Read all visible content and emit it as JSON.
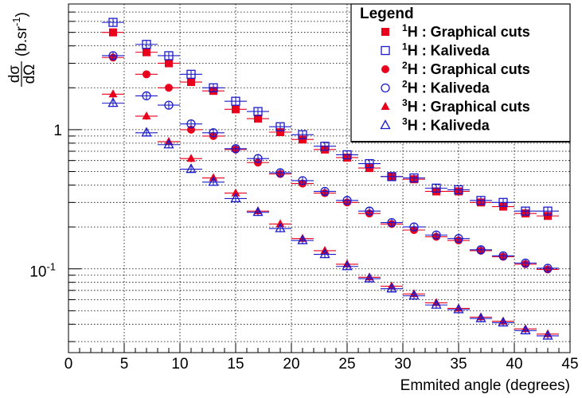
{
  "chart_data": {
    "type": "scatter",
    "title": "",
    "xlabel": "Emmited angle (degrees)",
    "ylabel_main": "dσ",
    "ylabel_denominator": "dΩ",
    "ylabel_unit": "(b.sr",
    "ylabel_exp": "-1",
    "ylabel_close": ")",
    "xlim": [
      0,
      45
    ],
    "ylim": [
      0.025,
      8
    ],
    "yscale": "log",
    "grid": true,
    "x_ticks": [
      "0",
      "5",
      "10",
      "15",
      "20",
      "25",
      "30",
      "35",
      "40",
      "45"
    ],
    "y_tick_one": "1",
    "y_tick_tenth_base": "10",
    "y_tick_tenth_exp": "-1",
    "legend": {
      "title": "Legend",
      "placement": "top-right"
    },
    "x": [
      4,
      7,
      9,
      11,
      13,
      15,
      17,
      19,
      21,
      23,
      25,
      27,
      29,
      31,
      33,
      35,
      37,
      39,
      41,
      43
    ],
    "x_error": 1,
    "series": [
      {
        "isotope": "1",
        "label": "H : Graphical cuts",
        "marker": "square-filled",
        "color": "#e8001c",
        "values": [
          5.0,
          3.6,
          3.0,
          2.2,
          1.9,
          1.4,
          1.2,
          0.96,
          0.85,
          0.72,
          0.63,
          0.53,
          0.46,
          0.44,
          0.36,
          0.36,
          0.3,
          0.28,
          0.25,
          0.24
        ]
      },
      {
        "isotope": "1",
        "label": "H : Kaliveda",
        "marker": "square-open",
        "color": "#1a1acc",
        "values": [
          5.9,
          4.1,
          3.4,
          2.5,
          2.0,
          1.6,
          1.35,
          1.05,
          0.92,
          0.76,
          0.66,
          0.57,
          0.46,
          0.45,
          0.38,
          0.37,
          0.31,
          0.3,
          0.26,
          0.26
        ]
      },
      {
        "isotope": "2",
        "label": "H : Graphical cuts",
        "marker": "circle-filled",
        "color": "#e8001c",
        "values": [
          3.3,
          2.5,
          2.0,
          1.0,
          0.9,
          0.72,
          0.58,
          0.48,
          0.41,
          0.35,
          0.3,
          0.25,
          0.21,
          0.19,
          0.17,
          0.16,
          0.135,
          0.122,
          0.108,
          0.099
        ]
      },
      {
        "isotope": "2",
        "label": "H : Kaliveda",
        "marker": "circle-open",
        "color": "#1a1acc",
        "values": [
          3.4,
          1.75,
          1.5,
          1.1,
          0.95,
          0.73,
          0.62,
          0.49,
          0.43,
          0.36,
          0.31,
          0.26,
          0.215,
          0.2,
          0.175,
          0.165,
          0.137,
          0.124,
          0.11,
          0.101
        ]
      },
      {
        "isotope": "3",
        "label": "H : Graphical cuts",
        "marker": "triangle-filled",
        "color": "#e8001c",
        "values": [
          1.8,
          1.25,
          0.82,
          0.62,
          0.45,
          0.35,
          0.26,
          0.21,
          0.165,
          0.135,
          0.108,
          0.087,
          0.075,
          0.066,
          0.057,
          0.052,
          0.045,
          0.042,
          0.037,
          0.034
        ]
      },
      {
        "isotope": "3",
        "label": "H : Kaliveda",
        "marker": "triangle-open",
        "color": "#1a1acc",
        "values": [
          1.55,
          0.95,
          0.78,
          0.52,
          0.42,
          0.32,
          0.255,
          0.195,
          0.16,
          0.127,
          0.104,
          0.085,
          0.072,
          0.064,
          0.055,
          0.051,
          0.044,
          0.041,
          0.036,
          0.033
        ]
      }
    ]
  }
}
